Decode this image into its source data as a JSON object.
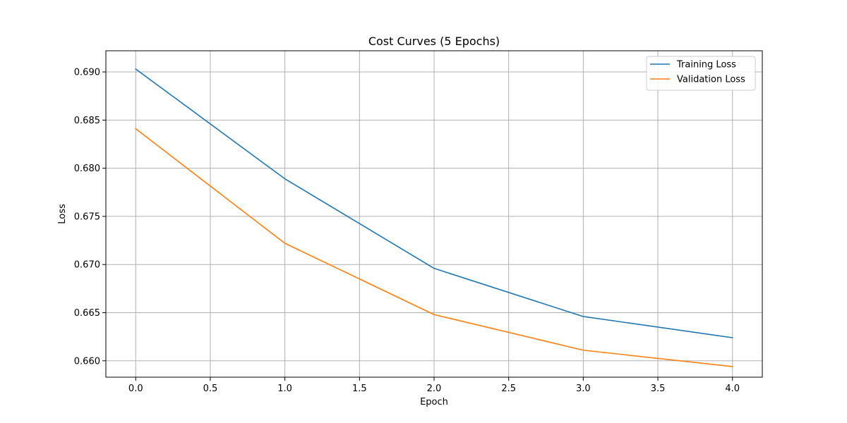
{
  "chart_data": {
    "type": "line",
    "title": "Cost Curves (5 Epochs)",
    "xlabel": "Epoch",
    "ylabel": "Loss",
    "x": [
      0,
      1,
      2,
      3,
      4
    ],
    "series": [
      {
        "name": "Training Loss",
        "color": "#1f77b4",
        "values": [
          0.6903,
          0.6789,
          0.6696,
          0.6646,
          0.6624
        ]
      },
      {
        "name": "Validation Loss",
        "color": "#ff7f0e",
        "values": [
          0.6841,
          0.6722,
          0.6648,
          0.6611,
          0.6594
        ]
      }
    ],
    "xlim": [
      -0.2,
      4.2
    ],
    "ylim": [
      0.6583,
      0.6922
    ],
    "xticks": [
      0.0,
      0.5,
      1.0,
      1.5,
      2.0,
      2.5,
      3.0,
      3.5,
      4.0
    ],
    "xtick_labels": [
      "0.0",
      "0.5",
      "1.0",
      "1.5",
      "2.0",
      "2.5",
      "3.0",
      "3.5",
      "4.0"
    ],
    "yticks": [
      0.66,
      0.665,
      0.67,
      0.675,
      0.68,
      0.685,
      0.69
    ],
    "ytick_labels": [
      "0.660",
      "0.665",
      "0.670",
      "0.675",
      "0.680",
      "0.685",
      "0.690"
    ],
    "grid": true,
    "legend_position": "top-right"
  }
}
